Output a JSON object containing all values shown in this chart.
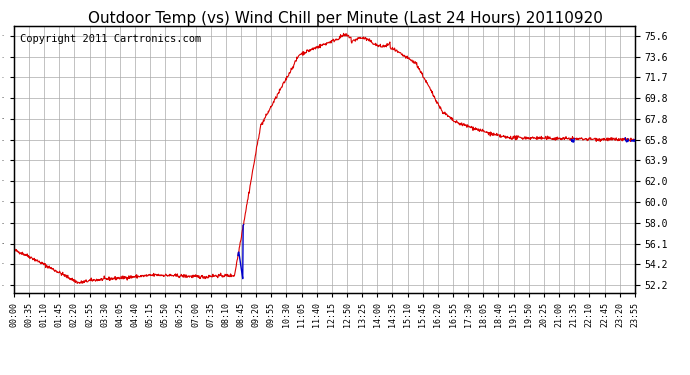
{
  "title": "Outdoor Temp (vs) Wind Chill per Minute (Last 24 Hours) 20110920",
  "copyright": "Copyright 2011 Cartronics.com",
  "ylabel_right": true,
  "yticks": [
    52.2,
    54.2,
    56.1,
    58.0,
    60.0,
    62.0,
    63.9,
    65.8,
    67.8,
    69.8,
    71.7,
    73.6,
    75.6
  ],
  "xlim_minutes": [
    0,
    1435
  ],
  "ylim": [
    51.5,
    76.5
  ],
  "bg_color": "#ffffff",
  "plot_bg_color": "#ffffff",
  "grid_color": "#aaaaaa",
  "line_color_red": "#dd0000",
  "line_color_blue": "#0000cc",
  "title_fontsize": 11,
  "copyright_fontsize": 7.5,
  "xtick_labels": [
    "00:00",
    "00:35",
    "01:10",
    "01:45",
    "02:20",
    "02:55",
    "03:30",
    "04:05",
    "04:40",
    "05:15",
    "05:50",
    "06:25",
    "07:00",
    "07:35",
    "08:10",
    "08:45",
    "09:20",
    "09:55",
    "10:30",
    "11:05",
    "11:40",
    "12:15",
    "12:50",
    "13:25",
    "14:00",
    "14:35",
    "15:10",
    "15:45",
    "16:20",
    "16:55",
    "17:30",
    "18:05",
    "18:40",
    "19:15",
    "19:50",
    "20:25",
    "21:00",
    "21:35",
    "22:10",
    "22:45",
    "23:20",
    "23:55"
  ]
}
